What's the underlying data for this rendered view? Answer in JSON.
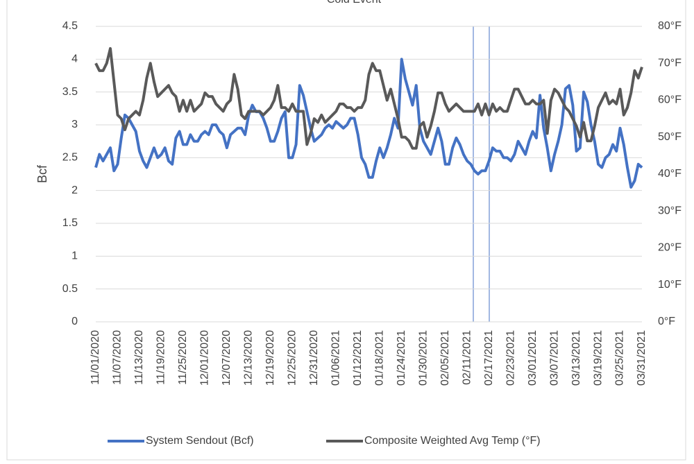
{
  "chart_data": {
    "type": "line",
    "title": "Cold Event",
    "y_label": "Bcf",
    "categories": [
      "11/01/2020",
      null,
      null,
      null,
      null,
      null,
      "11/07/2020",
      null,
      null,
      null,
      null,
      null,
      "11/13/2020",
      null,
      null,
      null,
      null,
      null,
      "11/19/2020",
      null,
      null,
      null,
      null,
      null,
      "11/25/2020",
      null,
      null,
      null,
      null,
      null,
      "12/01/2020",
      null,
      null,
      null,
      null,
      null,
      "12/07/2020",
      null,
      null,
      null,
      null,
      null,
      "12/13/2020",
      null,
      null,
      null,
      null,
      null,
      "12/19/2020",
      null,
      null,
      null,
      null,
      null,
      "12/25/2020",
      null,
      null,
      null,
      null,
      null,
      "12/31/2020",
      null,
      null,
      null,
      null,
      null,
      "01/06/2021",
      null,
      null,
      null,
      null,
      null,
      "01/12/2021",
      null,
      null,
      null,
      null,
      null,
      "01/18/2021",
      null,
      null,
      null,
      null,
      null,
      "01/24/2021",
      null,
      null,
      null,
      null,
      null,
      "01/30/2021",
      null,
      null,
      null,
      null,
      null,
      "02/05/2021",
      null,
      null,
      null,
      null,
      null,
      "02/11/2021",
      null,
      null,
      null,
      null,
      null,
      "02/17/2021",
      null,
      null,
      null,
      null,
      null,
      "02/23/2021",
      null,
      null,
      null,
      null,
      null,
      "03/01/2021",
      null,
      null,
      null,
      null,
      null,
      "03/07/2021",
      null,
      null,
      null,
      null,
      null,
      "03/13/2021",
      null,
      null,
      null,
      null,
      null,
      "03/19/2021",
      null,
      null,
      null,
      null,
      null,
      "03/25/2021",
      null,
      null,
      null,
      null,
      null,
      "03/31/2021"
    ],
    "series": [
      {
        "name": "System Sendout (Bcf)",
        "color": "#4472c4",
        "values": [
          2.35,
          2.55,
          2.45,
          2.55,
          2.65,
          2.3,
          2.4,
          2.8,
          3.15,
          3.1,
          3.0,
          2.9,
          2.6,
          2.45,
          2.35,
          2.5,
          2.65,
          2.5,
          2.55,
          2.65,
          2.45,
          2.4,
          2.8,
          2.9,
          2.7,
          2.7,
          2.85,
          2.75,
          2.75,
          2.85,
          2.9,
          2.85,
          3.0,
          3.0,
          2.9,
          2.85,
          2.65,
          2.85,
          2.9,
          2.95,
          2.95,
          2.85,
          3.15,
          3.3,
          3.2,
          3.2,
          3.1,
          2.95,
          2.75,
          2.75,
          2.9,
          3.1,
          3.2,
          2.5,
          2.5,
          2.7,
          3.6,
          3.45,
          3.2,
          2.95,
          2.75,
          2.8,
          2.85,
          2.95,
          3.0,
          2.95,
          3.05,
          3.0,
          2.95,
          3.0,
          3.1,
          3.1,
          2.85,
          2.5,
          2.4,
          2.2,
          2.2,
          2.45,
          2.65,
          2.5,
          2.65,
          2.85,
          3.1,
          2.95,
          4.0,
          3.7,
          3.5,
          3.3,
          3.6,
          2.95,
          2.75,
          2.65,
          2.55,
          2.75,
          2.95,
          2.75,
          2.4,
          2.4,
          2.65,
          2.8,
          2.7,
          2.55,
          2.45,
          2.4,
          2.3,
          2.25,
          2.3,
          2.3,
          2.45,
          2.65,
          2.6,
          2.6,
          2.5,
          2.5,
          2.45,
          2.55,
          2.75,
          2.65,
          2.55,
          2.75,
          2.9,
          2.8,
          3.45,
          2.95,
          2.65,
          2.3,
          2.55,
          2.75,
          3.0,
          3.55,
          3.6,
          3.3,
          2.6,
          2.65,
          3.5,
          3.35,
          3.0,
          2.75,
          2.4,
          2.35,
          2.5,
          2.55,
          2.7,
          2.6,
          2.95,
          2.7,
          2.35,
          2.05,
          2.15,
          2.4,
          2.35
        ]
      },
      {
        "name": "Composite Weighted Avg Temp (°F)",
        "color": "#595959",
        "axis": "y2",
        "values": [
          70,
          68,
          68,
          70,
          74,
          65,
          56,
          55,
          52,
          55,
          56,
          57,
          56,
          60,
          66,
          70,
          65,
          61,
          62,
          63,
          64,
          62,
          61,
          57,
          60,
          57,
          60,
          57,
          58,
          59,
          62,
          61,
          61,
          59,
          58,
          57,
          59,
          60,
          67,
          63,
          56,
          55,
          57,
          57,
          57,
          57,
          56,
          57,
          58,
          60,
          64,
          58,
          58,
          57,
          59,
          57,
          57,
          57,
          48,
          51,
          55,
          54,
          56,
          54,
          55,
          56,
          57,
          59,
          59,
          58,
          58,
          57,
          58,
          58,
          60,
          67,
          70,
          68,
          68,
          64,
          60,
          63,
          59,
          55,
          50,
          50,
          49,
          47,
          47,
          53,
          54,
          50,
          53,
          57,
          62,
          62,
          59,
          57,
          58,
          59,
          58,
          57,
          57,
          57,
          57,
          59,
          56,
          59,
          56,
          59,
          57,
          58,
          57,
          57,
          60,
          63,
          63,
          61,
          59,
          59,
          60,
          59,
          59,
          60,
          51,
          60,
          63,
          62,
          60,
          58,
          57,
          55,
          53,
          50,
          54,
          49,
          49,
          53,
          58,
          60,
          62,
          59,
          60,
          59,
          63,
          56,
          58,
          62,
          68,
          66,
          69
        ]
      }
    ],
    "ylim": [
      0,
      4.5
    ],
    "yticks": [
      0,
      0.5,
      1,
      1.5,
      2,
      2.5,
      3,
      3.5,
      4,
      4.5
    ],
    "y2lim": [
      0,
      80
    ],
    "y2ticks": [
      {
        "value": 0,
        "label": "0°F"
      },
      {
        "value": 10,
        "label": "10°F"
      },
      {
        "value": 20,
        "label": "20°F"
      },
      {
        "value": 30,
        "label": "30°F"
      },
      {
        "value": 40,
        "label": "40°F"
      },
      {
        "value": 50,
        "label": "50°F"
      },
      {
        "value": 60,
        "label": "60°F"
      },
      {
        "value": 70,
        "label": "70°F"
      },
      {
        "value": 80,
        "label": "80°F"
      }
    ],
    "grid": true,
    "legend": "bottom"
  }
}
